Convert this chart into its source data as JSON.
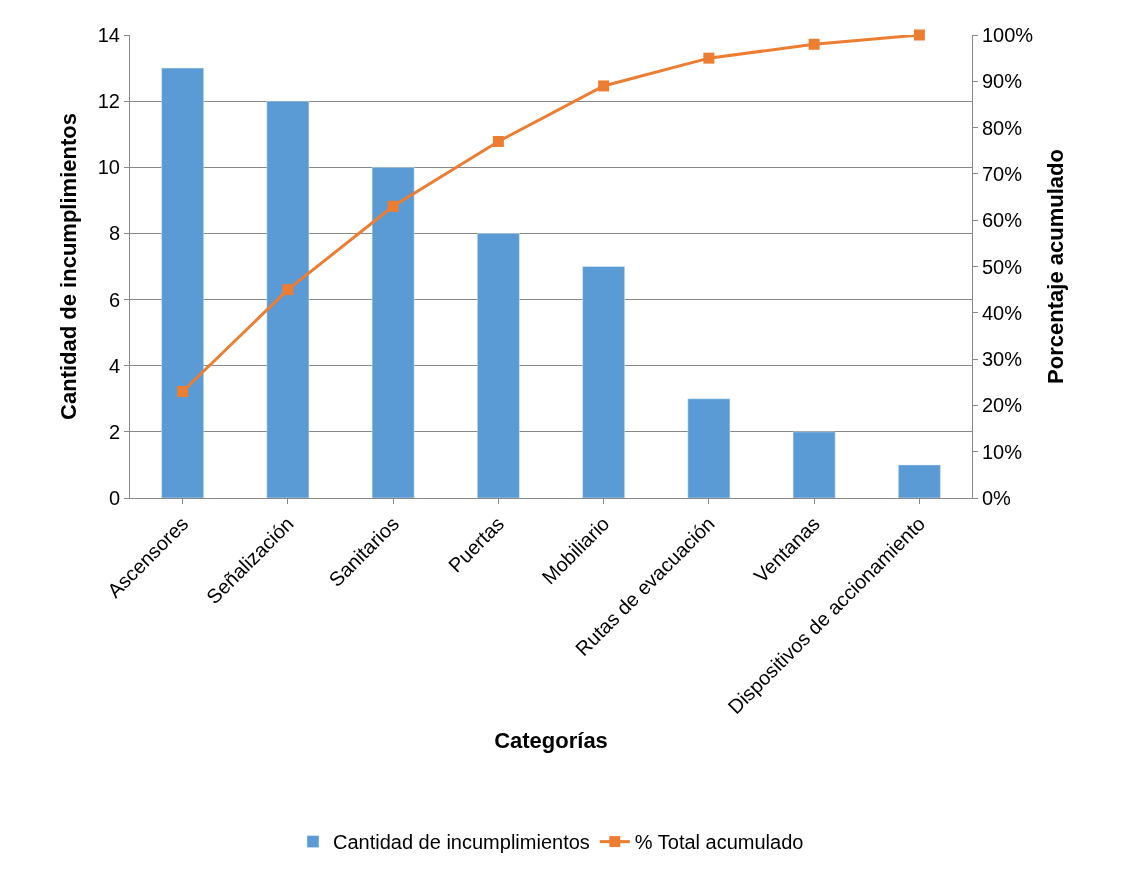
{
  "chart_data": {
    "type": "bar",
    "xlabel": "Categorías",
    "ylabel": "Cantidad de incumplimientos",
    "y2label": "Porcentaje acumulado",
    "categories": [
      "Ascensores",
      "Señalización",
      "Sanitarios",
      "Puertas",
      "Mobiliario",
      "Rutas de evacuación",
      "Ventanas",
      "Dispositivos de accionamiento"
    ],
    "series": [
      {
        "name": "Cantidad de incumplimientos",
        "color": "#5b9bd5",
        "values": [
          13,
          12,
          10,
          8,
          7,
          3,
          2,
          1
        ]
      },
      {
        "name": "% Total acumulado",
        "type": "line",
        "axis": "y2",
        "color": "#ed7d31",
        "marker": "square",
        "values": [
          23,
          45,
          63,
          77,
          89,
          95,
          98,
          100
        ]
      }
    ],
    "ylim": [
      0,
      14
    ],
    "yticks": [
      0,
      2,
      4,
      6,
      8,
      10,
      12,
      14
    ],
    "y2lim": [
      0,
      100
    ],
    "y2ticks": [
      {
        "value": 0,
        "label": "0%"
      },
      {
        "value": 10,
        "label": "10%"
      },
      {
        "value": 20,
        "label": "20%"
      },
      {
        "value": 30,
        "label": "30%"
      },
      {
        "value": 40,
        "label": "40%"
      },
      {
        "value": 50,
        "label": "50%"
      },
      {
        "value": 60,
        "label": "60%"
      },
      {
        "value": 70,
        "label": "70%"
      },
      {
        "value": 80,
        "label": "80%"
      },
      {
        "value": 90,
        "label": "90%"
      },
      {
        "value": 100,
        "label": "100%"
      }
    ],
    "grid": "y",
    "legend": "bottom"
  }
}
